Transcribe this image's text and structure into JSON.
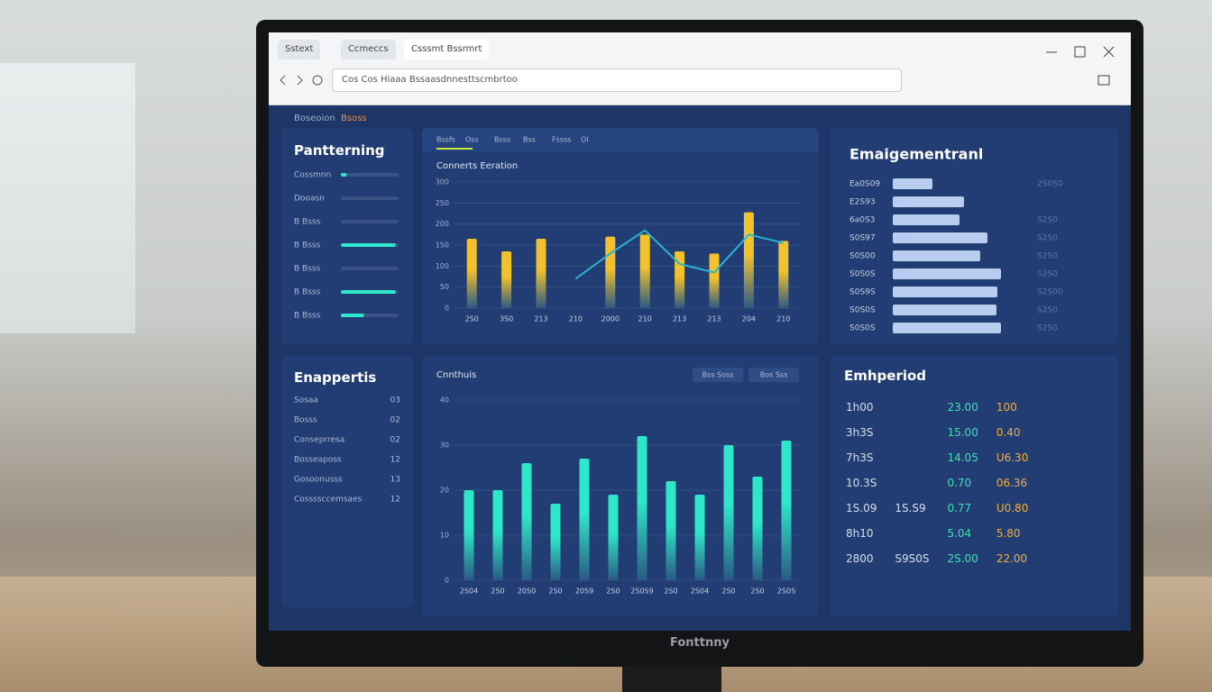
{
  "browser": {
    "tabs": [
      "Sstext",
      "Ccmeccs",
      "Csssmt Bssrmrt"
    ],
    "address": "Cos Cos Hiaaa Bssaasdnnesttscmbrtoo"
  },
  "nav": [
    "Boseoion",
    "Bsoss"
  ],
  "monitor_brand": "Fonttnny",
  "progress_panel": {
    "title": "Pantterning",
    "xlim": [
      0,
      100
    ],
    "items": [
      {
        "label": "Cossmnn",
        "value": 10
      },
      {
        "label": "Dooasn",
        "value": 0
      },
      {
        "label": "B Bsss",
        "value": 0
      },
      {
        "label": "B Bsss",
        "value": 95
      },
      {
        "label": "B Bsss",
        "value": 0
      },
      {
        "label": "B Bsss",
        "value": 95
      },
      {
        "label": "B Bsss",
        "value": 40
      }
    ]
  },
  "list_panel": {
    "title": "Enappertis",
    "rows": [
      [
        "Sosaa",
        "03"
      ],
      [
        "Bosss",
        "02"
      ],
      [
        "Conseprresa",
        "02"
      ],
      [
        "Bosseaposs",
        "12"
      ],
      [
        "Gosoonusss",
        "13"
      ],
      [
        "Cossssccemsaes",
        "12"
      ]
    ]
  },
  "chart_data": [
    {
      "type": "bar",
      "title": "Connerts Eeration",
      "tabs": [
        "Bssfs",
        "Oss",
        "Bsss",
        "Bss",
        "Fssss",
        "Ol"
      ],
      "categories": [
        "2S0",
        "3S0",
        "213",
        "210",
        "2000",
        "210",
        "213",
        "213",
        "204",
        "210"
      ],
      "series": [
        {
          "color": "#f2c12e",
          "values": [
            165,
            135,
            165,
            0,
            170,
            175,
            135,
            130,
            228,
            160
          ]
        },
        {
          "type": "line",
          "color": "#27b3d6",
          "values": [
            null,
            null,
            null,
            70,
            130,
            185,
            105,
            85,
            175,
            155
          ]
        }
      ],
      "ylim": [
        0,
        300
      ],
      "yticks": [
        0,
        50,
        100,
        150,
        200,
        250,
        300
      ],
      "grid": true
    },
    {
      "type": "bar",
      "title": "Cnnthuis",
      "toggles": [
        "Bss Soss",
        "Bos Sss"
      ],
      "categories": [
        "2S04",
        "2S0",
        "20S0",
        "2S0",
        "20S9",
        "2S0",
        "2S0S9",
        "2S0",
        "2S04",
        "2S0",
        "2S0",
        "2S0S"
      ],
      "values": [
        20,
        20,
        26,
        17,
        27,
        19,
        32,
        22,
        19,
        30,
        23,
        31
      ],
      "color": "#2ee6c8",
      "ylim": [
        0,
        40
      ],
      "yticks": [
        0,
        10,
        20,
        30,
        40
      ],
      "grid": true
    },
    {
      "type": "hbar",
      "title": "Emaigementranl",
      "categories": [
        "Ea0S09",
        "E2S93",
        "6a0S3",
        "S0S97",
        "S0S00",
        "S0S0S",
        "S0S9S",
        "S0S0S",
        "S0S0S"
      ],
      "values": [
        44,
        79,
        74,
        105,
        97,
        120,
        116,
        115,
        120
      ],
      "color": "#b8cdf0",
      "xlim": [
        0,
        150
      ],
      "annotations": [
        "2S0S0",
        null,
        "S2S0",
        "S2S0",
        "S2S0",
        "S2S0",
        "S2S00",
        "S2S0",
        "S2S0"
      ]
    }
  ],
  "table_panel": {
    "title": "Emhperiod",
    "rows": [
      [
        "1h00",
        null,
        "23.00",
        "100"
      ],
      [
        "3h3S",
        null,
        "15.00",
        "0.40"
      ],
      [
        "7h3S",
        null,
        "14.05",
        "U6.30"
      ],
      [
        "10.3S",
        null,
        "0.70",
        "06.36"
      ],
      [
        "1S.09",
        "1S.S9",
        "0.77",
        "U0.80"
      ],
      [
        "8h10",
        null,
        "5.04",
        "5.80"
      ],
      [
        "2800",
        "S9S0S",
        "2S.00",
        "22.00"
      ]
    ]
  }
}
